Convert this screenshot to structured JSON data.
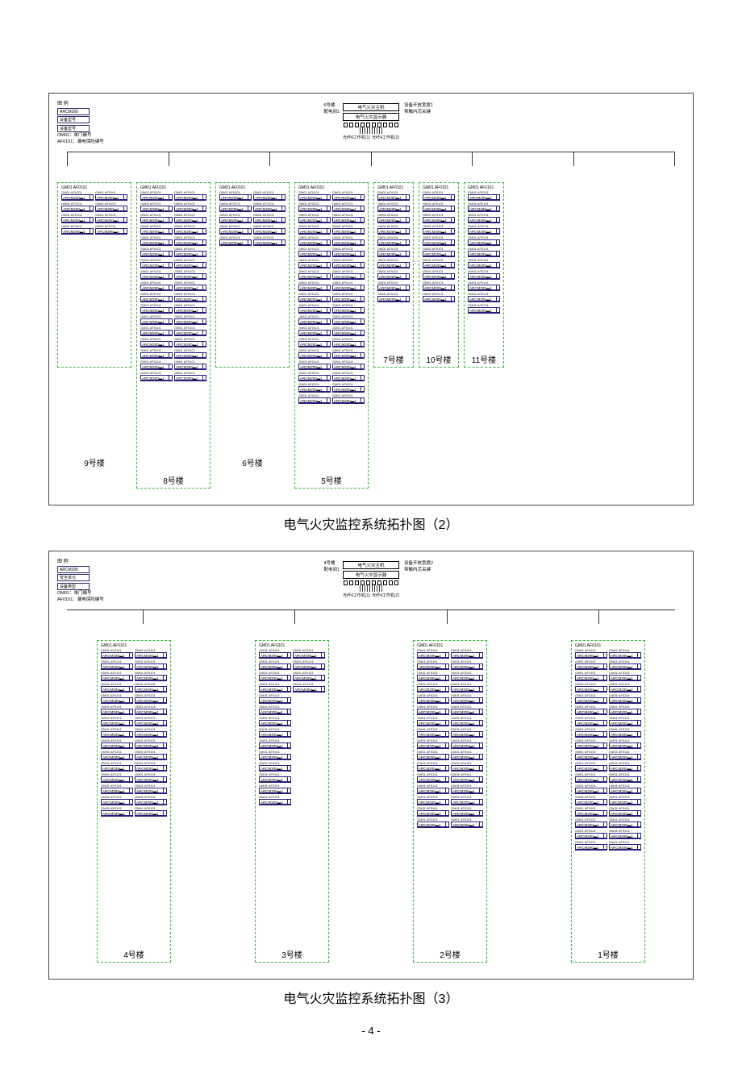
{
  "style": {
    "module_border": "#261f7a",
    "dash_border": "#2fbf2f",
    "background": "#ffffff",
    "text_color": "#000000",
    "caption_fontsize": 16,
    "bldg_label_fontsize": 10,
    "module_fontsize": 4.5
  },
  "page_number": "- 4 -",
  "diagram1": {
    "caption": "电气火灾监控系统拓扑图（2）",
    "legend": {
      "title": "图 例",
      "rows": [
        "ARCM200",
        "设备型号",
        "设备型号"
      ],
      "notes": [
        "OM01：单门编号",
        "AF0101：漏电保险编号"
      ]
    },
    "head": {
      "left_caption": [
        "6号楼",
        "配电间1"
      ],
      "right_caption": [
        "设备开放宽度1",
        "带触内芯关键"
      ],
      "boxes": [
        "电气火灾主机",
        "电气火灾显示器"
      ],
      "port_note_left": "光纤4工作机(1)",
      "port_note_right": "光纤4工作机(2)"
    },
    "buildings": [
      {
        "id": "bldg-9",
        "label": "9号楼",
        "panel": "GM01 AF0101",
        "cols": 2,
        "rows": 4,
        "mod": "ARCM200▬1"
      },
      {
        "id": "bldg-8",
        "label": "8号楼",
        "panel": "GM01 AF0101",
        "cols": 2,
        "rows": 17,
        "mod": "ARCM200▬1"
      },
      {
        "id": "bldg-6",
        "label": "6号楼",
        "panel": "GM01 AF0101",
        "cols": 2,
        "rows": 5,
        "mod": "ARCM200▬1"
      },
      {
        "id": "bldg-5",
        "label": "5号楼",
        "panel": "GM01 AF0101",
        "cols": 2,
        "rows": 19,
        "mod": "ARCM200▬1"
      },
      {
        "id": "bldg-7",
        "label": "7号楼",
        "panel": "GM01 AF0101",
        "cols": 1,
        "rows": 10,
        "mod": "ARCM200▬1"
      },
      {
        "id": "bldg-10",
        "label": "10号楼",
        "panel": "GM01 AF0101",
        "cols": 1,
        "rows": 10,
        "mod": "ARCM200▬1"
      },
      {
        "id": "bldg-11",
        "label": "11号楼",
        "panel": "GM01 AF0101",
        "cols": 1,
        "rows": 11,
        "mod": "ARCM200▬1"
      }
    ],
    "floating_labels": {
      "b9": "9号楼",
      "b6": "6号楼"
    }
  },
  "diagram2": {
    "caption": "电气火灾监控系统拓扑图（3）",
    "legend": {
      "title": "图 例",
      "rows": [
        "ARCM200",
        "安全单元",
        "设备类型"
      ],
      "notes": [
        "OM01：单门编号",
        "AF0101：漏电保险编号"
      ]
    },
    "head": {
      "left_caption": [
        "4号楼",
        "配电间1"
      ],
      "right_caption": [
        "设备开放宽度2",
        "带触内芯关键"
      ],
      "boxes": [
        "电气火灾主机",
        "电气火灾显示器"
      ],
      "port_note_left": "光纤4工作机(1)",
      "port_note_right": "光纤4工作机(2)"
    },
    "buildings": [
      {
        "id": "bldg-4",
        "label": "4号楼",
        "panel": "GM01 AF0101",
        "cols": 2,
        "rows": 15,
        "mod": "ARCM200▬1"
      },
      {
        "id": "bldg-3",
        "label": "3号楼",
        "panel": "GM01 AF0101",
        "cols": 2,
        "rows_a": 14,
        "rows_b": 4,
        "mod": "ARCM200▬1"
      },
      {
        "id": "bldg-2",
        "label": "2号楼",
        "panel": "GM01 AF0101",
        "cols": 2,
        "rows": 16,
        "mod": "ARCM200▬1"
      },
      {
        "id": "bldg-1",
        "label": "1号楼",
        "panel": "GM01 AF0101",
        "cols": 2,
        "rows": 18,
        "mod": "ARCM200▬1"
      }
    ]
  }
}
